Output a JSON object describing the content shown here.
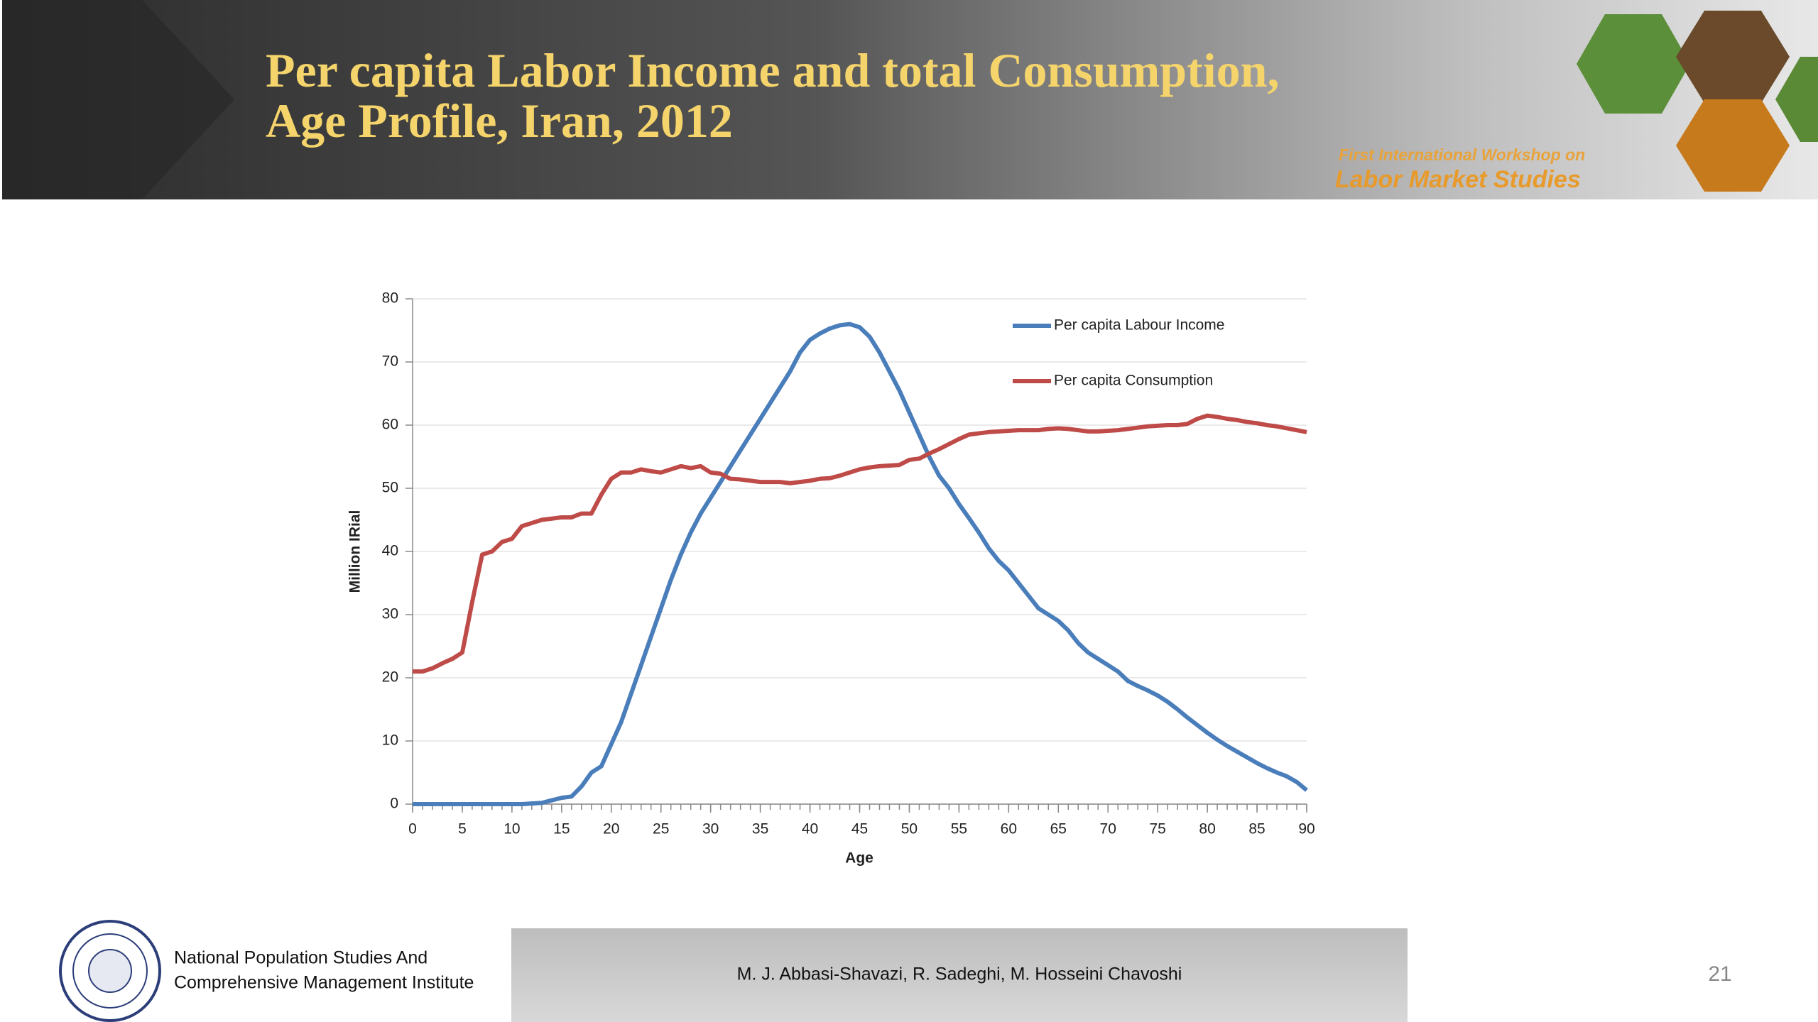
{
  "header": {
    "title_lines": [
      "Per capita Labor Income and total Consumption,",
      "Age Profile, Iran, 2012"
    ],
    "workshop_lines": [
      "First International Workshop on",
      "Labor Market Studies"
    ]
  },
  "chart_data": {
    "type": "line",
    "xlabel": "Age",
    "ylabel": "Million IRial",
    "x": [
      0,
      1,
      2,
      3,
      4,
      5,
      6,
      7,
      8,
      9,
      10,
      11,
      12,
      13,
      14,
      15,
      16,
      17,
      18,
      19,
      20,
      21,
      22,
      23,
      24,
      25,
      26,
      27,
      28,
      29,
      30,
      31,
      32,
      33,
      34,
      35,
      36,
      37,
      38,
      39,
      40,
      41,
      42,
      43,
      44,
      45,
      46,
      47,
      48,
      49,
      50,
      51,
      52,
      53,
      54,
      55,
      56,
      57,
      58,
      59,
      60,
      61,
      62,
      63,
      64,
      65,
      66,
      67,
      68,
      69,
      70,
      71,
      72,
      73,
      74,
      75,
      76,
      77,
      78,
      79,
      80,
      81,
      82,
      83,
      84,
      85,
      86,
      87,
      88,
      89,
      90
    ],
    "series": [
      {
        "name": "Per capita Labour Income",
        "color": "#4a7ebb",
        "values": [
          0,
          0,
          0,
          0,
          0,
          0,
          0,
          0,
          0,
          0,
          0,
          0,
          0.1,
          0.2,
          0.6,
          1.0,
          1.2,
          2.8,
          5,
          6,
          9.5,
          13,
          17.5,
          22,
          26.5,
          31,
          35.5,
          39.5,
          43,
          46,
          48.5,
          51,
          53.5,
          56,
          58.5,
          61,
          63.5,
          66,
          68.5,
          71.5,
          73.5,
          74.5,
          75.3,
          75.8,
          76,
          75.5,
          74,
          71.5,
          68.5,
          65.5,
          62,
          58.5,
          55,
          52,
          50,
          47.5,
          45.3,
          43,
          40.5,
          38.5,
          37,
          35,
          33,
          31,
          30,
          29,
          27.5,
          25.5,
          24,
          23,
          22,
          21,
          19.5,
          18.7,
          18,
          17.2,
          16.2,
          15,
          13.7,
          12.5,
          11.3,
          10.2,
          9.2,
          8.3,
          7.4,
          6.5,
          5.7,
          5,
          4.4,
          3.5,
          2.2
        ]
      },
      {
        "name": "Per capita Consumption",
        "color": "#be4b48",
        "values": [
          21,
          21,
          21.5,
          22.3,
          23,
          24,
          32,
          39.5,
          40,
          41.5,
          42,
          44,
          44.5,
          45,
          45.2,
          45.4,
          45.4,
          46,
          46,
          49,
          51.5,
          52.5,
          52.5,
          53,
          52.7,
          52.5,
          53,
          53.5,
          53.2,
          53.5,
          52.5,
          52.3,
          51.5,
          51.4,
          51.2,
          51,
          51,
          51,
          50.8,
          51,
          51.2,
          51.5,
          51.6,
          52,
          52.5,
          53,
          53.3,
          53.5,
          53.6,
          53.7,
          54.5,
          54.7,
          55.5,
          56.2,
          57,
          57.8,
          58.5,
          58.7,
          58.9,
          59,
          59.1,
          59.2,
          59.2,
          59.2,
          59.4,
          59.5,
          59.4,
          59.2,
          59,
          59,
          59.1,
          59.2,
          59.4,
          59.6,
          59.8,
          59.9,
          60,
          60,
          60.2,
          61,
          61.5,
          61.3,
          61,
          60.8,
          60.5,
          60.3,
          60,
          59.8,
          59.5,
          59.2,
          58.9
        ]
      }
    ],
    "xlim": [
      0,
      90
    ],
    "xticks": [
      0,
      5,
      10,
      15,
      20,
      25,
      30,
      35,
      40,
      45,
      50,
      55,
      60,
      65,
      70,
      75,
      80,
      85,
      90
    ],
    "ylim": [
      0,
      80
    ],
    "yticks": [
      0,
      10,
      20,
      30,
      40,
      50,
      60,
      70,
      80
    ],
    "grid": true
  },
  "footer": {
    "institute_lines": [
      "National Population Studies And",
      "Comprehensive Management Institute"
    ],
    "authors": "M. J. Abbasi-Shavazi, R. Sadeghi, M. Hosseini Chavoshi",
    "page_number": "21"
  }
}
